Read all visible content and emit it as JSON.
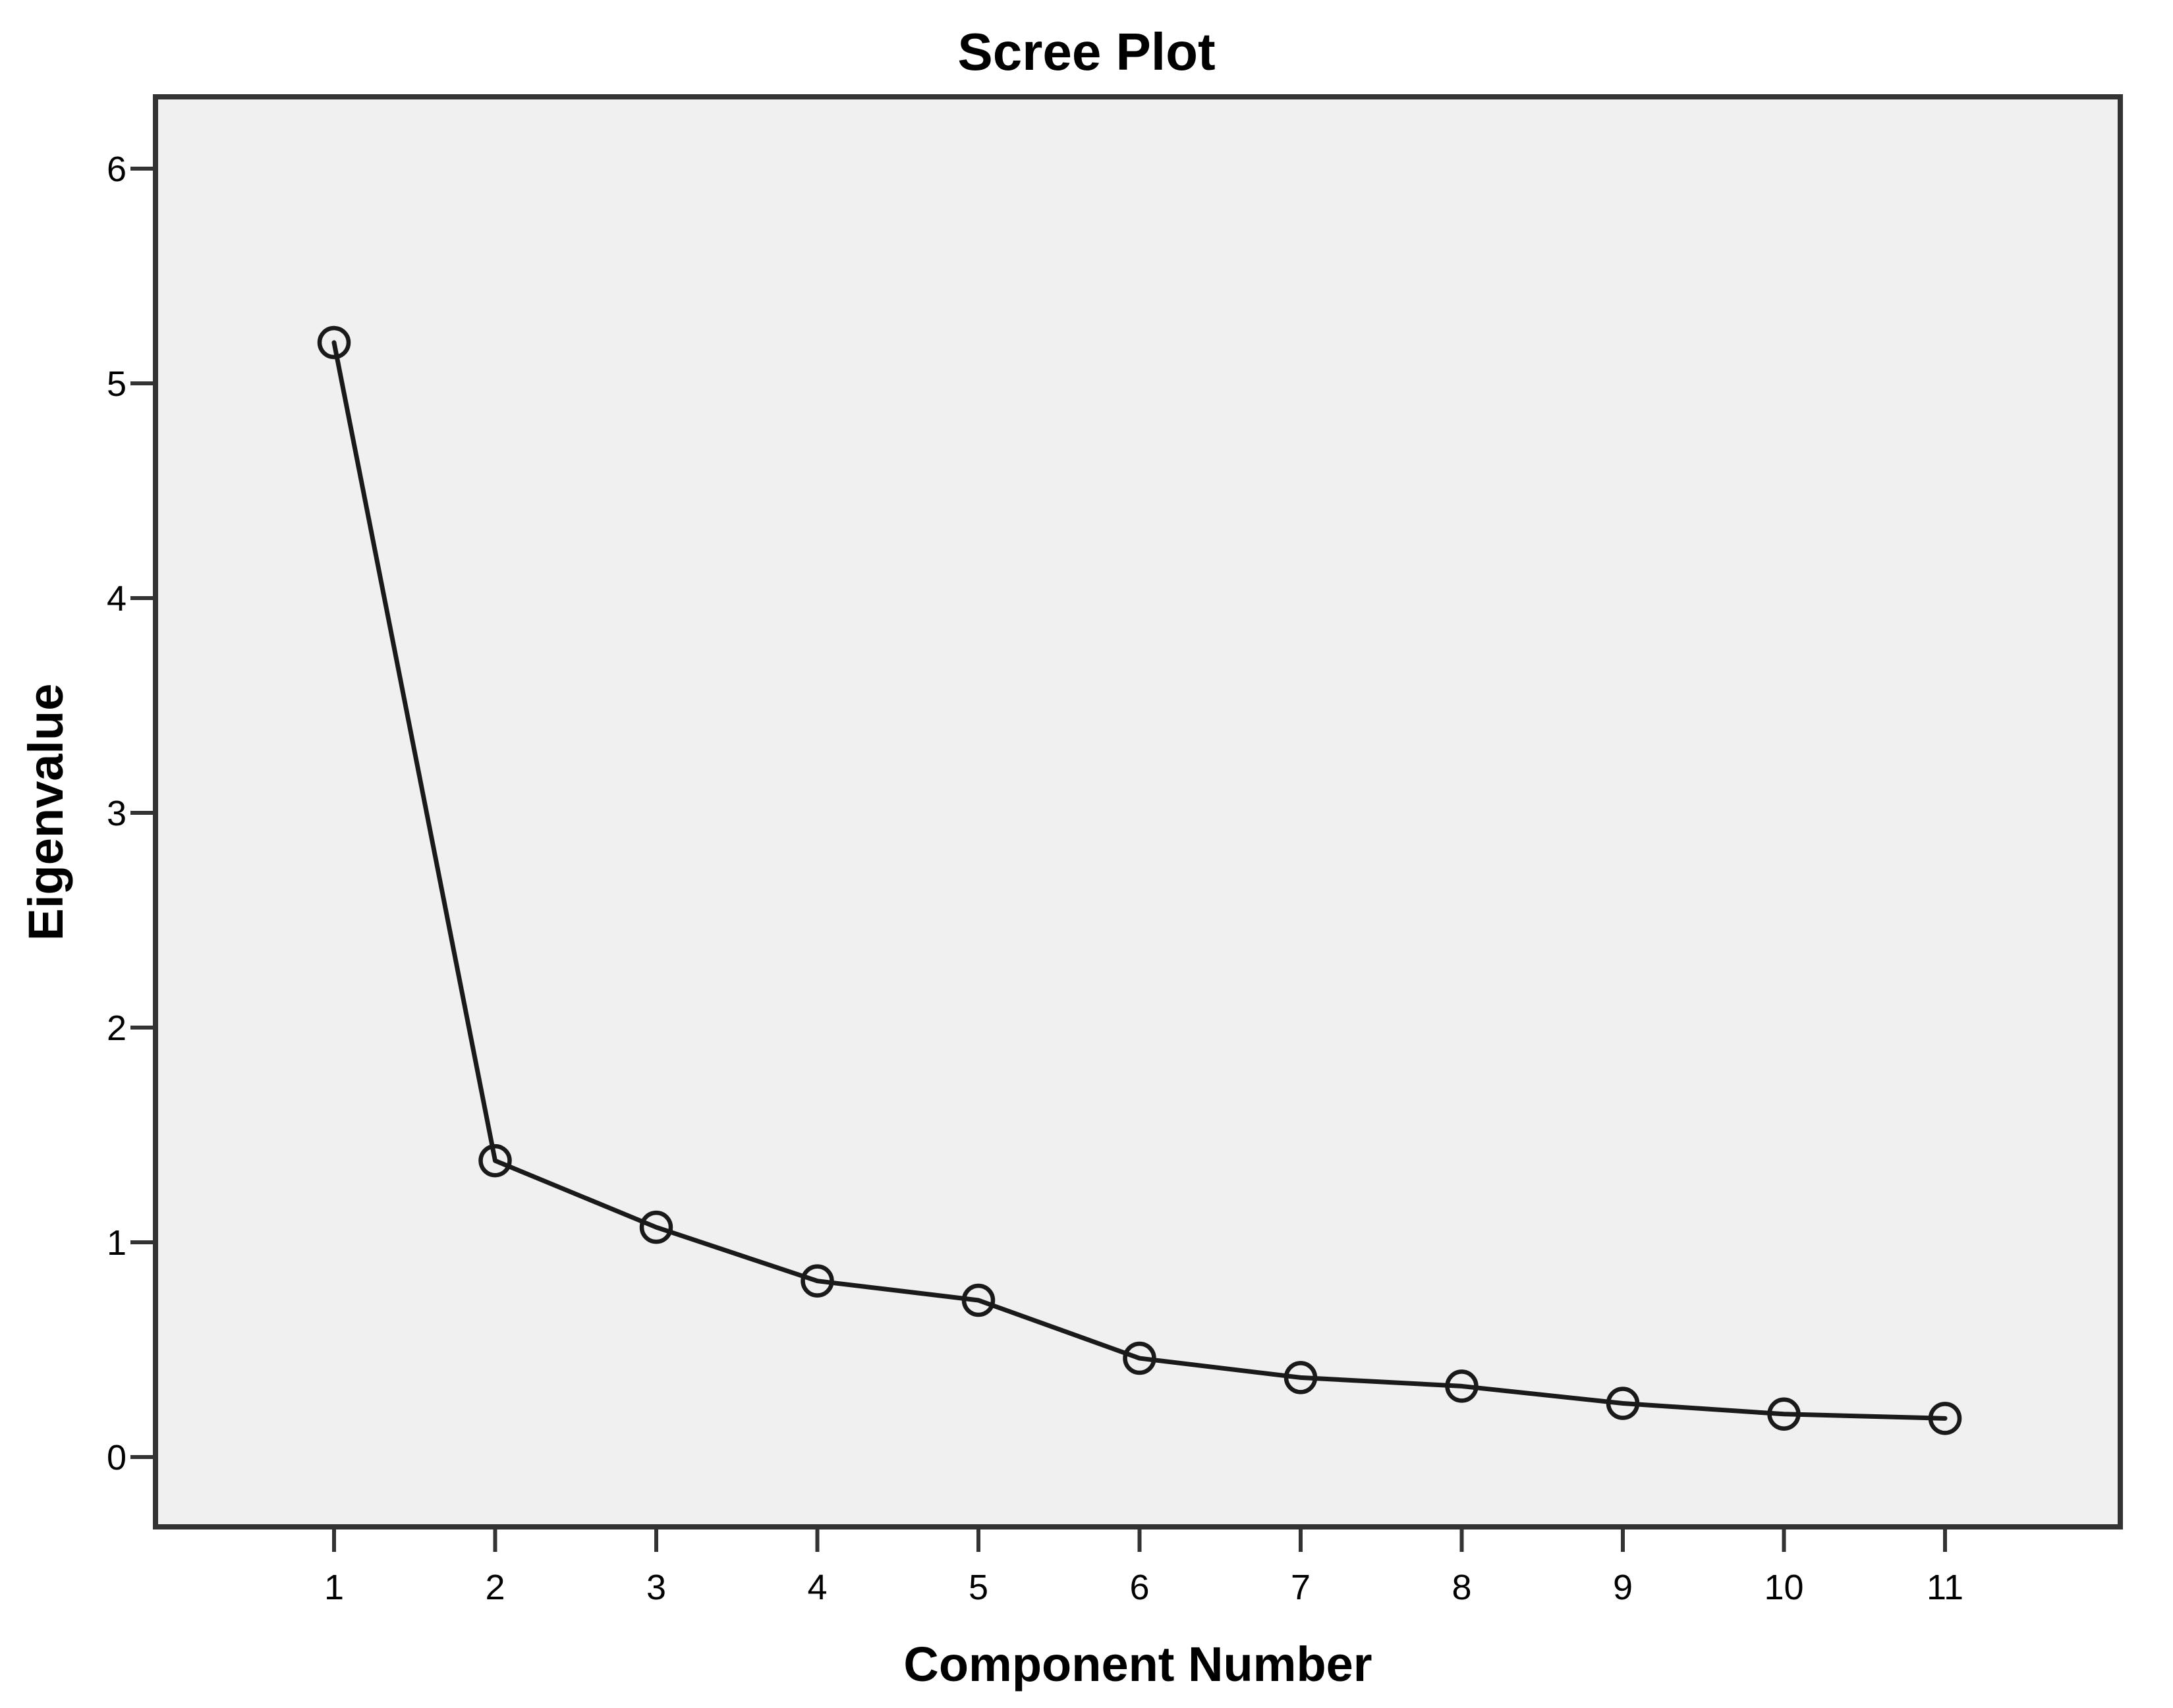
{
  "page": {
    "background_color": "#ffffff"
  },
  "chart_data": {
    "type": "line",
    "title": "Scree Plot",
    "xlabel": "Component Number",
    "ylabel": "Eigenvalue",
    "x": [
      1,
      2,
      3,
      4,
      5,
      6,
      7,
      8,
      9,
      10,
      11
    ],
    "series": [
      {
        "name": "Eigenvalue",
        "values": [
          5.19,
          1.38,
          1.07,
          0.82,
          0.73,
          0.46,
          0.37,
          0.33,
          0.25,
          0.2,
          0.18
        ]
      }
    ],
    "x_tick_labels": [
      "1",
      "2",
      "3",
      "4",
      "5",
      "6",
      "7",
      "8",
      "9",
      "10",
      "11"
    ],
    "y_ticks": [
      0,
      1,
      2,
      3,
      4,
      5,
      6
    ],
    "y_tick_labels": [
      "0",
      "1",
      "2",
      "3",
      "4",
      "5",
      "6"
    ],
    "ylim": [
      -0.33,
      6.33
    ],
    "grid": false,
    "legend_position": "none",
    "marker": "open-circle",
    "colors": {
      "line": "#1a1a1a",
      "marker_stroke": "#1a1a1a",
      "plot_background": "#f0f0f0",
      "frame": "#333333",
      "tick": "#333333",
      "text": "#000000",
      "page_background": "#ffffff"
    }
  }
}
